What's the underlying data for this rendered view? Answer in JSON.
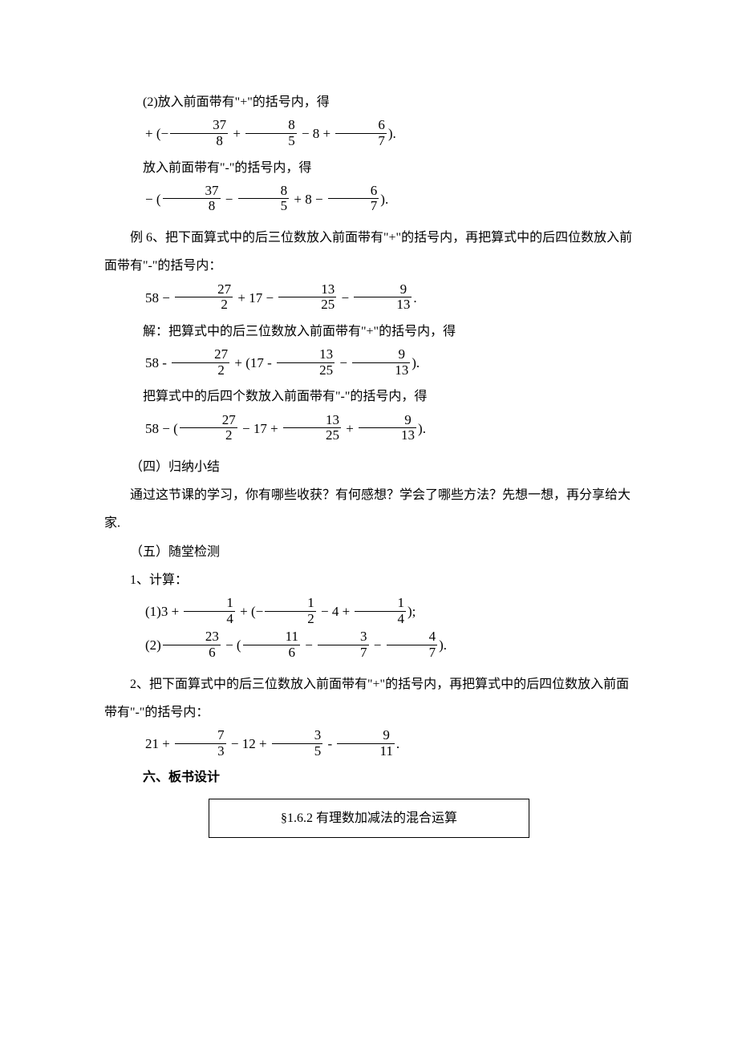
{
  "content": {
    "page_bg": "#ffffff",
    "text_color": "#000000",
    "base_fontsize": 16,
    "math_fontsize": 17,
    "p1": "(2)放入前面带有\"+\"的括号内，得",
    "p2": "放入前面带有\"-\"的括号内，得",
    "example6_intro": "例 6、把下面算式中的后三位数放入前面带有\"+\"的括号内，再把算式中的后四位数放入前面带有\"-\"的括号内：",
    "sol_label": "解：把算式中的后三位数放入前面带有\"+\"的括号内，得",
    "sol_part2": "把算式中的后四个数放入前面带有\"-\"的括号内，得",
    "section4": "（四）归纳小结",
    "summary_text": "通过这节课的学习，你有哪些收获？有何感想？学会了哪些方法？先想一想，再分享给大家.",
    "section5": "（五）随堂检测",
    "q1_label": "1、计算：",
    "q2_text": "2、把下面算式中的后三位数放入前面带有\"+\"的括号内，再把算式中的后四位数放入前面带有\"-\"的括号内：",
    "section6": "六、板书设计",
    "box_title": "§1.6.2 有理数加减法的混合运算"
  },
  "math": {
    "eq1": {
      "lead_int": "8",
      "f1": {
        "num": "37",
        "den": "8"
      },
      "f2": {
        "num": "8",
        "den": "5"
      },
      "f3": {
        "num": "6",
        "den": "7"
      }
    },
    "eq2": {
      "lead_int": "8",
      "f1": {
        "num": "37",
        "den": "8"
      },
      "f2": {
        "num": "8",
        "den": "5"
      },
      "f3": {
        "num": "6",
        "den": "7"
      }
    },
    "ex6_main": {
      "a": "58",
      "b": "17",
      "f1": {
        "num": "27",
        "den": "2"
      },
      "f2": {
        "num": "13",
        "den": "25"
      },
      "f3": {
        "num": "9",
        "den": "13"
      }
    },
    "q1_1": {
      "a": "3",
      "b": "4",
      "f1": {
        "num": "1",
        "den": "4"
      },
      "f2": {
        "num": "1",
        "den": "2"
      },
      "f3": {
        "num": "1",
        "den": "4"
      }
    },
    "q1_2": {
      "f1": {
        "num": "23",
        "den": "6"
      },
      "f2": {
        "num": "11",
        "den": "6"
      },
      "f3": {
        "num": "3",
        "den": "7"
      },
      "f4": {
        "num": "4",
        "den": "7"
      }
    },
    "q2": {
      "a": "21",
      "b": "12",
      "f1": {
        "num": "7",
        "den": "3"
      },
      "f2": {
        "num": "3",
        "den": "5"
      },
      "f3": {
        "num": "9",
        "den": "11"
      }
    }
  }
}
